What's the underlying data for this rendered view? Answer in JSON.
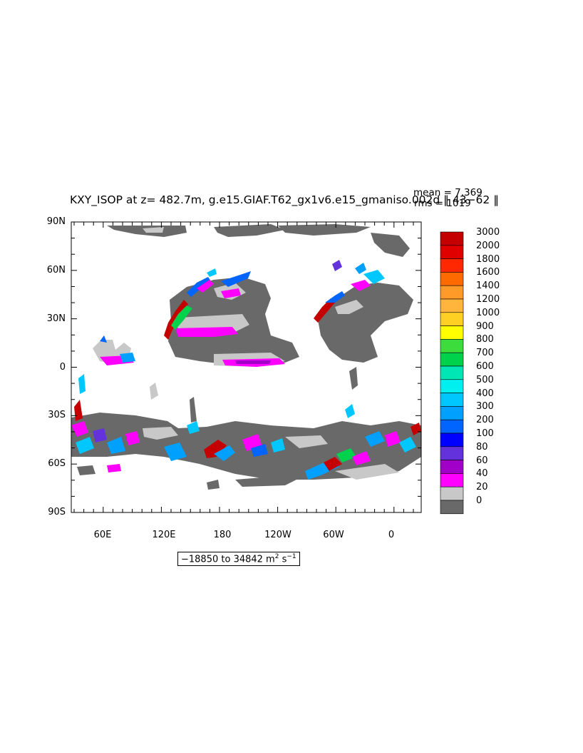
{
  "title": "KXY_ISOP at z= 482.7m, g.e15.GIAF.T62_gx1v6.e15_gmaniso.002d  ‖ 43−62 ‖",
  "stats": {
    "mean": "mean = 7.369",
    "rms": "rms = 1019"
  },
  "lat_labels": [
    "90N",
    "60N",
    "30N",
    "0",
    "30S",
    "60S",
    "90S"
  ],
  "lon_labels": [
    "60E",
    "120E",
    "180",
    "120W",
    "60W",
    "0"
  ],
  "range": {
    "text": "−18850 to 34842 m",
    "sup1": "2",
    "mid": " s",
    "sup2": "−1"
  },
  "colorbar": {
    "levels": [
      "3000",
      "2000",
      "1800",
      "1600",
      "1400",
      "1200",
      "1000",
      "900",
      "800",
      "700",
      "600",
      "500",
      "400",
      "300",
      "200",
      "100",
      "80",
      "60",
      "40",
      "20",
      "0"
    ],
    "colors": [
      "#c40000",
      "#e00000",
      "#ff2800",
      "#ff6a00",
      "#ff9a28",
      "#ffb43c",
      "#ffd024",
      "#ffff00",
      "#3cdc3c",
      "#00d24b",
      "#00e6b4",
      "#00f0f0",
      "#00c8ff",
      "#00a0ff",
      "#0064ff",
      "#0000ff",
      "#6432dc",
      "#a000c8",
      "#ff00ff",
      "#c8c8c8",
      "#696969"
    ]
  }
}
